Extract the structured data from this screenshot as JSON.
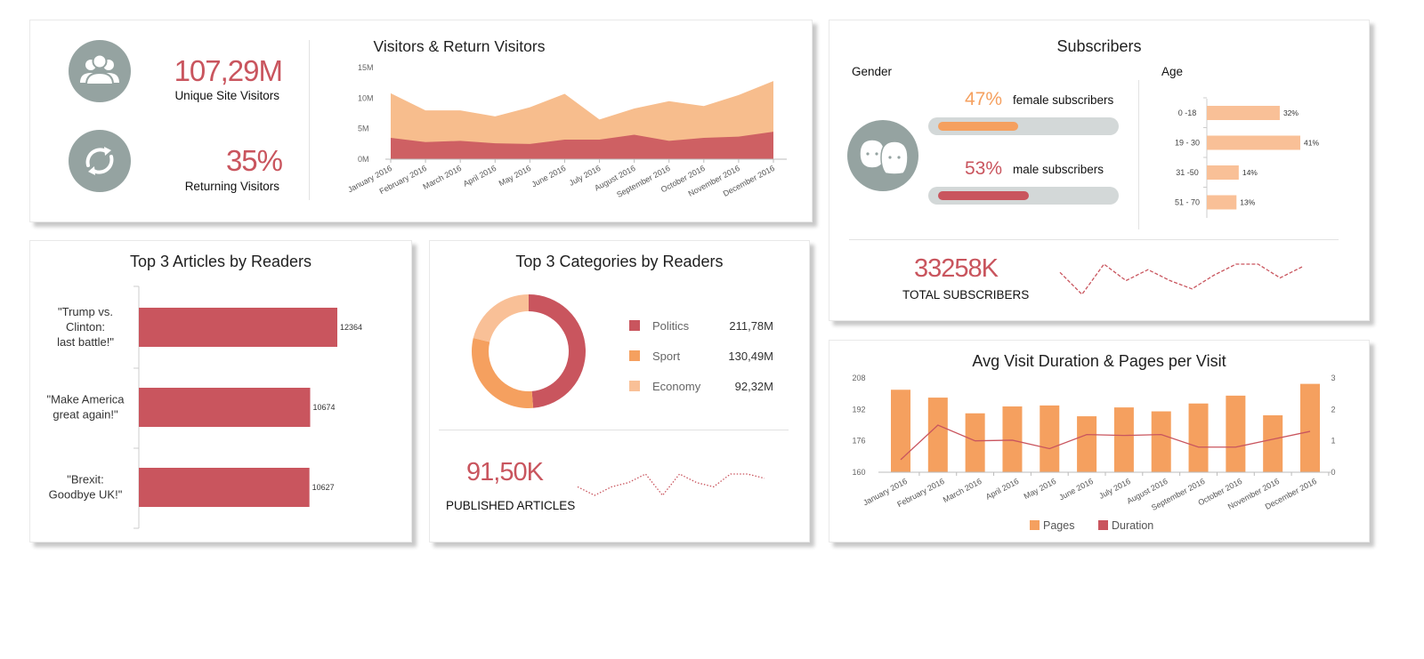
{
  "colors": {
    "red": "#c9555e",
    "orange": "#f5a05f",
    "light_orange": "#f7bd8d",
    "peach": "#f9c097",
    "grey": "#95a3a1",
    "bar_track": "#d3d8d8"
  },
  "visitors": {
    "unique_value": "107,29M",
    "unique_label": "Unique Site Visitors",
    "returning_value": "35%",
    "returning_label": "Returning Visitors",
    "unique_icon": "users-group-icon",
    "returning_icon": "refresh-cycle-icon"
  },
  "subscribers": {
    "title": "Subscribers",
    "gender_label": "Gender",
    "age_label": "Age",
    "female_pct": "47%",
    "female_label": "female subscribers",
    "female_fill": 0.47,
    "male_pct": "53%",
    "male_label": "male subscribers",
    "male_fill": 0.53,
    "gender_icon": "male-female-faces-icon",
    "total_value": "33258K",
    "total_label": "TOTAL SUBSCRIBERS"
  },
  "categories_card": {
    "title": "Top 3 Categories by Readers",
    "published_value": "91,50K",
    "published_label": "PUBLISHED ARTICLES"
  },
  "chart_data": [
    {
      "id": "visitors",
      "type": "area",
      "title": "Visitors & Return Visitors",
      "x": [
        "January 2016",
        "February 2016",
        "March 2016",
        "April 2016",
        "May 2016",
        "June 2016",
        "July 2016",
        "August 2016",
        "September 2016",
        "October 2016",
        "November 2016",
        "December 2016"
      ],
      "y_ticks": [
        "0M",
        "5M",
        "10M",
        "15M"
      ],
      "ylim": [
        0,
        15
      ],
      "series": [
        {
          "values": [
            10.8,
            8.0,
            8.0,
            7.0,
            8.5,
            10.7,
            6.5,
            8.3,
            9.5,
            8.7,
            10.5,
            12.8
          ]
        },
        {
          "values": [
            3.5,
            2.8,
            3.0,
            2.6,
            2.5,
            3.2,
            3.2,
            4.0,
            3.0,
            3.5,
            3.7,
            4.5
          ]
        }
      ]
    },
    {
      "id": "age",
      "type": "bar",
      "orientation": "horizontal",
      "categories": [
        "0 -18",
        "19 - 30",
        "31 -50",
        "51 - 70"
      ],
      "values": [
        32,
        41,
        14,
        13
      ],
      "value_labels": [
        "32%",
        "41%",
        "14%",
        "13%"
      ]
    },
    {
      "id": "subscribers_spark",
      "type": "line",
      "style": "dashed",
      "values": [
        9,
        1,
        12,
        6,
        10,
        6,
        3,
        8,
        12,
        12,
        7,
        11
      ]
    },
    {
      "id": "articles",
      "type": "bar",
      "orientation": "horizontal",
      "title": "Top 3 Articles by Readers",
      "categories": [
        [
          "\"Trump vs.",
          "Clinton:",
          "last battle!\""
        ],
        [
          "\"Make America",
          "great again!\""
        ],
        [
          "\"Brexit:",
          "Goodbye UK!\""
        ]
      ],
      "values": [
        12364,
        10674,
        10627
      ],
      "value_labels": [
        "12364",
        "10674",
        "10627"
      ]
    },
    {
      "id": "categories",
      "type": "pie",
      "style": "donut",
      "labels": [
        "Politics",
        "Sport",
        "Economy"
      ],
      "values": [
        211.78,
        130.49,
        92.32
      ],
      "value_labels": [
        "211,78M",
        "130,49M",
        "92,32M"
      ],
      "colors": [
        "#c9555e",
        "#f5a05f",
        "#f9c097"
      ]
    },
    {
      "id": "articles_spark",
      "type": "line",
      "style": "dotted",
      "values": [
        3,
        1,
        3,
        4,
        6,
        1,
        6,
        4,
        3,
        6,
        6,
        5
      ]
    },
    {
      "id": "duration",
      "type": "bar",
      "title": "Avg Visit Duration & Pages per Visit",
      "x": [
        "January 2016",
        "February 2016",
        "March 2016",
        "April 2016",
        "May 2016",
        "June 2016",
        "July 2016",
        "August 2016",
        "September 2016",
        "October 2016",
        "November 2016",
        "December 2016"
      ],
      "y_left_ticks": [
        "160",
        "176",
        "192",
        "208"
      ],
      "ylim_left": [
        160,
        208
      ],
      "y_right_ticks": [
        "0",
        "1",
        "2",
        "3"
      ],
      "ylim_right": [
        0,
        3
      ],
      "series": [
        {
          "name": "Pages",
          "type": "bar",
          "values": [
            202,
            198,
            190,
            193.5,
            194,
            188.5,
            193,
            191,
            195,
            199,
            189,
            205
          ]
        },
        {
          "name": "Duration",
          "type": "line",
          "values": [
            0.4,
            1.5,
            1.0,
            1.02,
            0.75,
            1.2,
            1.17,
            1.2,
            0.8,
            0.8,
            1.05,
            1.3
          ]
        }
      ],
      "legend": "bottom"
    }
  ]
}
